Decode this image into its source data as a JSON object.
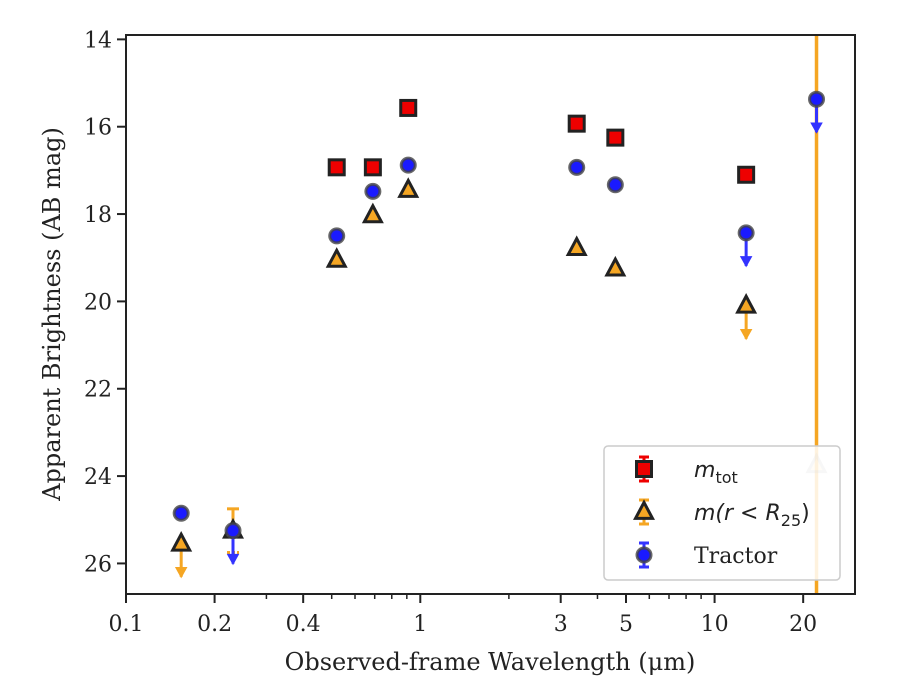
{
  "chart_data": {
    "type": "scatter",
    "xlabel": "Observed-frame Wavelength (μm)",
    "ylabel": "Apparent Brightness (AB mag)",
    "xscale": "log",
    "xlim": [
      0.1,
      30
    ],
    "ylim": [
      26.7,
      13.9
    ],
    "y_inverted": true,
    "grid": false,
    "legend_position": "lower-right",
    "x_ticks": [
      {
        "value": 0.1,
        "label": "0.1"
      },
      {
        "value": 0.2,
        "label": "0.2"
      },
      {
        "value": 0.4,
        "label": "0.4"
      },
      {
        "value": 1,
        "label": "1"
      },
      {
        "value": 3,
        "label": "3"
      },
      {
        "value": 5,
        "label": "5"
      },
      {
        "value": 10,
        "label": "10"
      },
      {
        "value": 20,
        "label": "20"
      }
    ],
    "y_ticks": [
      {
        "value": 14,
        "label": "14"
      },
      {
        "value": 16,
        "label": "16"
      },
      {
        "value": 18,
        "label": "18"
      },
      {
        "value": 20,
        "label": "20"
      },
      {
        "value": 22,
        "label": "22"
      },
      {
        "value": 24,
        "label": "24"
      },
      {
        "value": 26,
        "label": "26"
      }
    ],
    "series": [
      {
        "name": "m_tot",
        "legend_main": "m",
        "legend_sub": "tot",
        "marker": "square",
        "color": "#ee0000",
        "error_color": "#ee0000",
        "points": [
          {
            "x": 0.52,
            "y": 16.93
          },
          {
            "x": 0.69,
            "y": 16.93
          },
          {
            "x": 0.91,
            "y": 15.57
          },
          {
            "x": 3.4,
            "y": 15.93
          },
          {
            "x": 4.6,
            "y": 16.25
          },
          {
            "x": 12.8,
            "y": 17.1
          }
        ]
      },
      {
        "name": "m(r<R_25)",
        "legend_main": "m(r < R",
        "legend_sub": "25",
        "legend_tail": ")",
        "marker": "triangle",
        "color": "#f5a623",
        "error_color": "#f5a623",
        "points": [
          {
            "x": 0.154,
            "y": 25.55,
            "upper_limit": true
          },
          {
            "x": 0.231,
            "y": 25.25,
            "err": 0.5
          },
          {
            "x": 0.52,
            "y": 19.05
          },
          {
            "x": 0.69,
            "y": 18.03
          },
          {
            "x": 0.91,
            "y": 17.45
          },
          {
            "x": 3.4,
            "y": 18.78
          },
          {
            "x": 4.6,
            "y": 19.25
          },
          {
            "x": 12.8,
            "y": 20.1,
            "upper_limit": true
          },
          {
            "x": 22.2,
            "y": 23.75,
            "vertical_band": true,
            "faded": true
          }
        ]
      },
      {
        "name": "Tractor",
        "legend_main": "Tractor",
        "marker": "circle",
        "color": "#1a1aff",
        "error_color": "#3333ff",
        "points": [
          {
            "x": 0.154,
            "y": 24.85
          },
          {
            "x": 0.231,
            "y": 25.25,
            "upper_limit": true
          },
          {
            "x": 0.52,
            "y": 18.5
          },
          {
            "x": 0.69,
            "y": 17.48
          },
          {
            "x": 0.91,
            "y": 16.88
          },
          {
            "x": 3.4,
            "y": 16.93
          },
          {
            "x": 4.6,
            "y": 17.33
          },
          {
            "x": 12.8,
            "y": 18.43,
            "upper_limit": true
          },
          {
            "x": 22.2,
            "y": 15.37,
            "upper_limit": true
          }
        ]
      }
    ]
  }
}
